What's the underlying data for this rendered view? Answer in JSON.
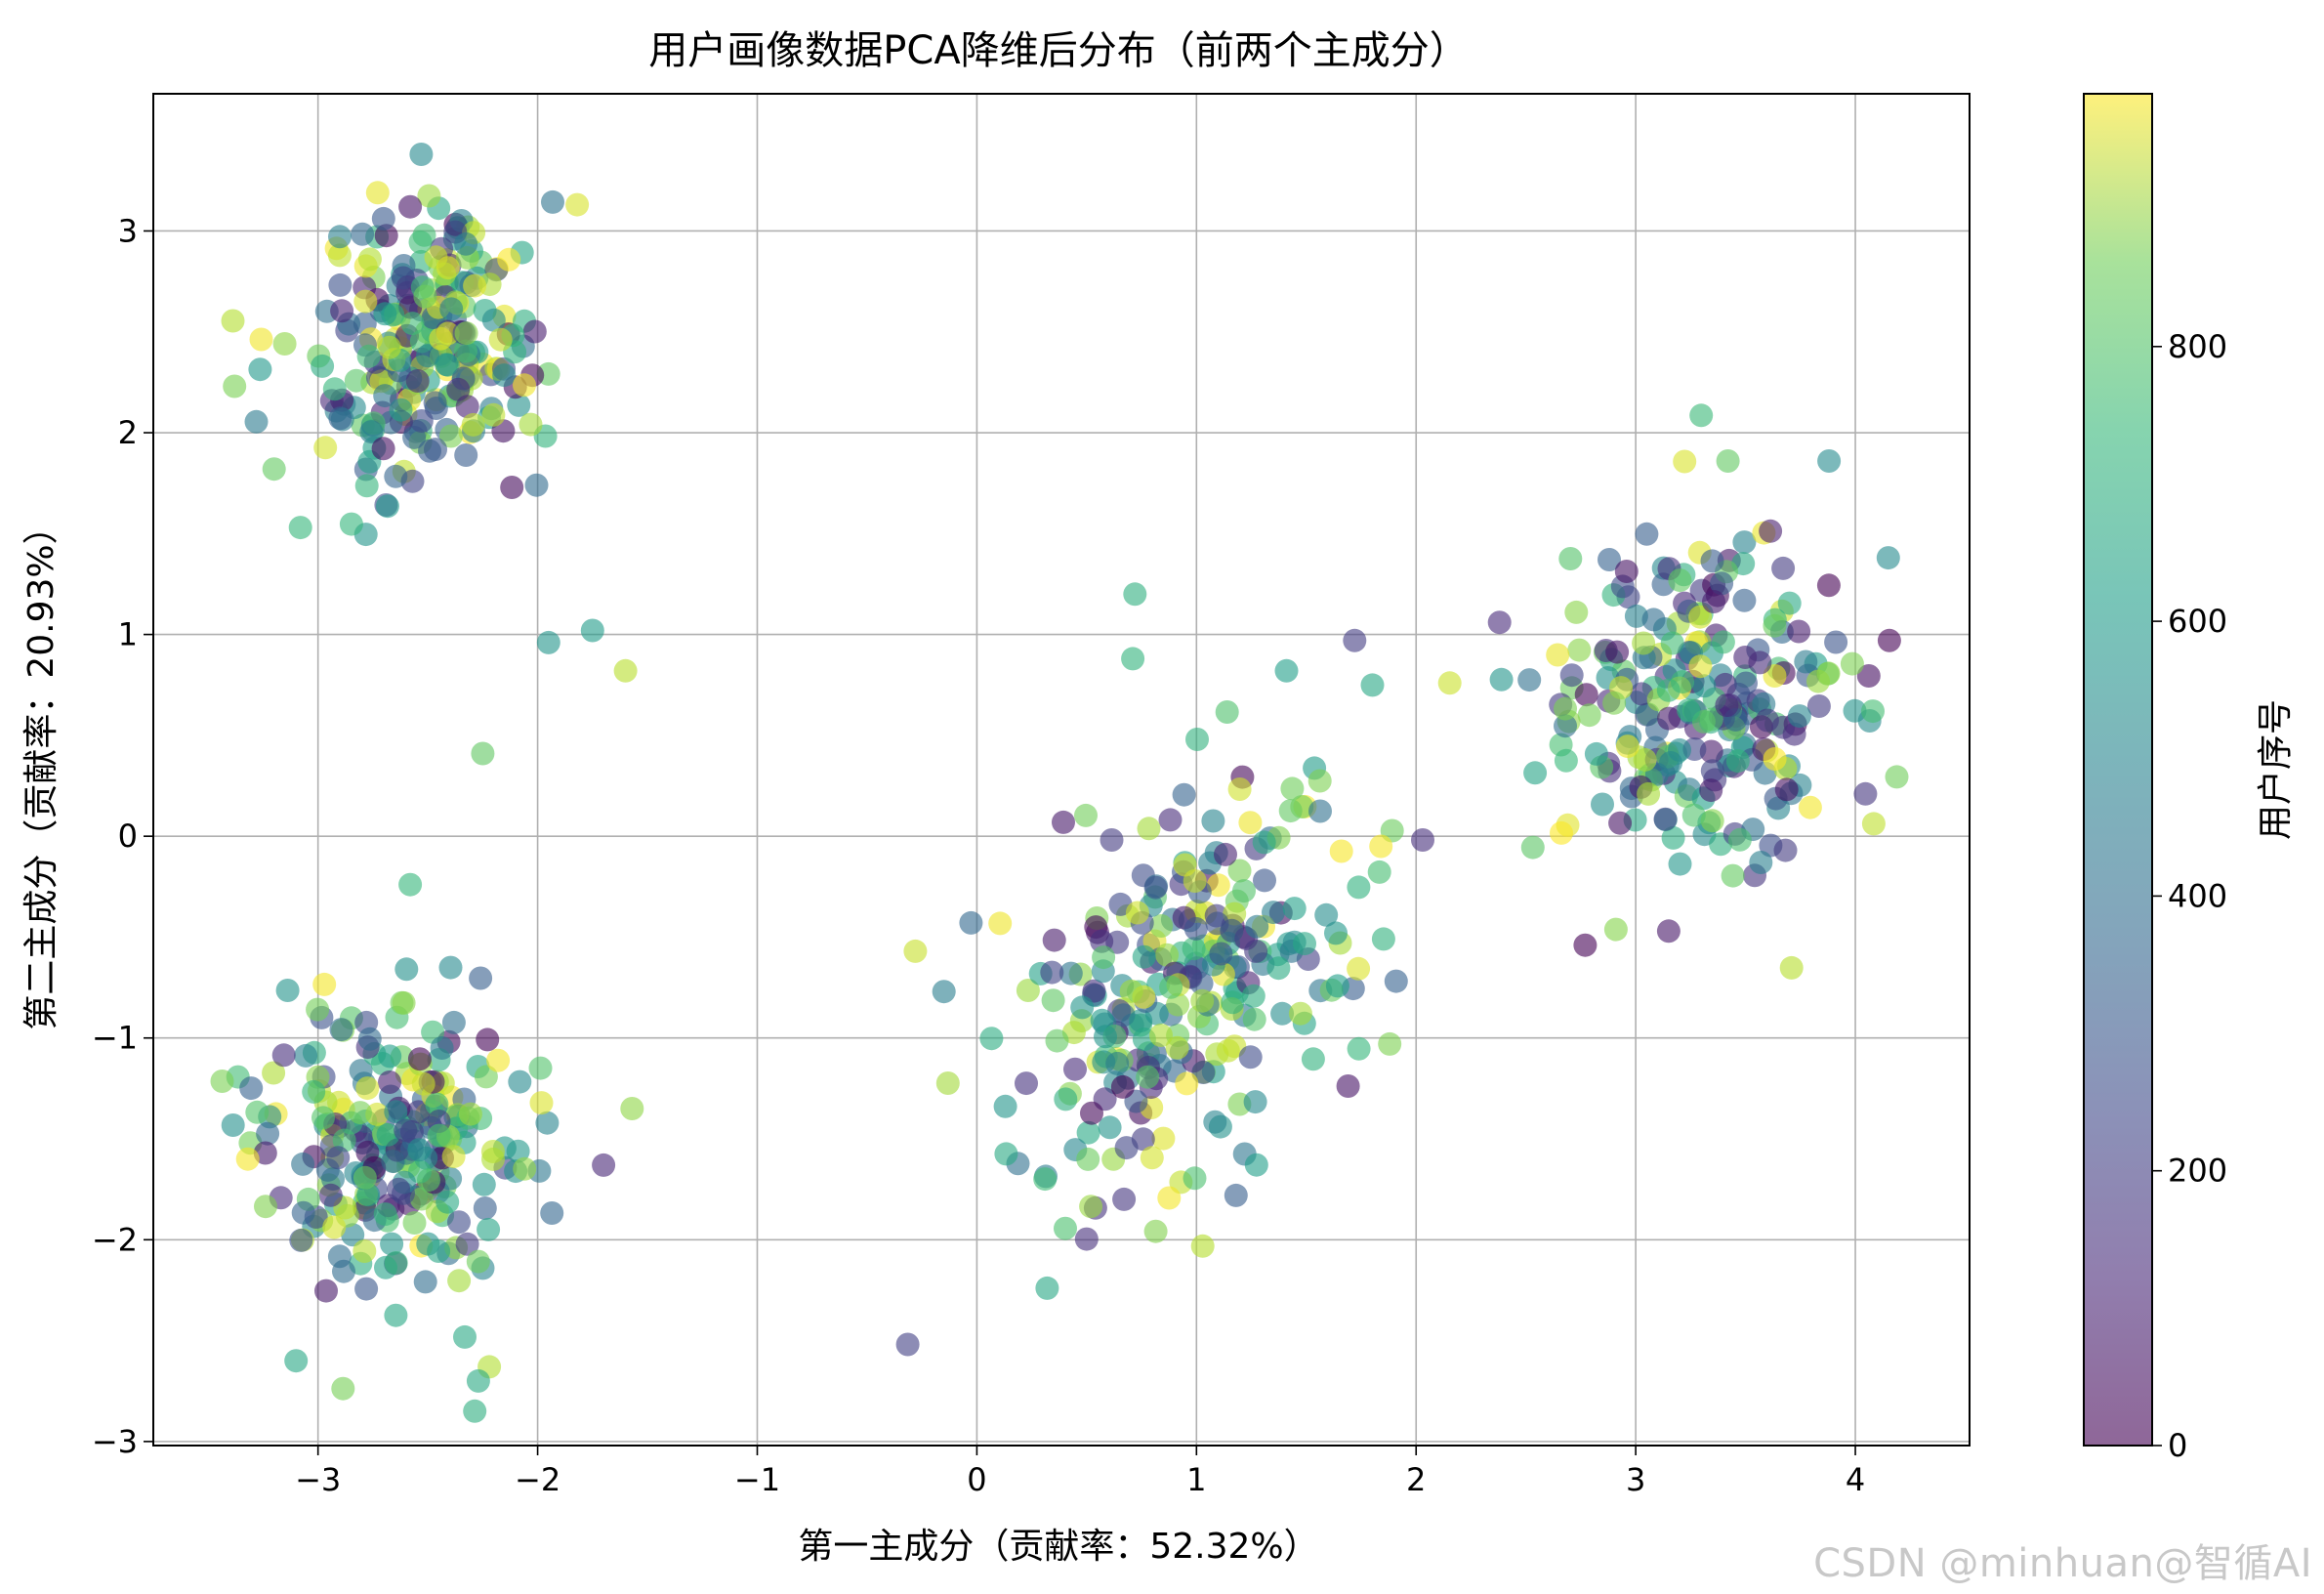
{
  "chart_data": {
    "type": "scatter",
    "title": "用户画像数据PCA降维后分布（前两个主成分）",
    "xlabel": "第一主成分（贡献率：52.32%）",
    "ylabel": "第二主成分（贡献率：20.93%）",
    "xlim": [
      -3.75,
      4.52
    ],
    "ylim": [
      -3.02,
      3.68
    ],
    "xticks": [
      -3,
      -2,
      -1,
      0,
      1,
      2,
      3,
      4
    ],
    "xtick_labels": [
      "−3",
      "−2",
      "−1",
      "0",
      "1",
      "2",
      "3",
      "4"
    ],
    "yticks": [
      -3,
      -2,
      -1,
      0,
      1,
      2,
      3
    ],
    "ytick_labels": [
      "−3",
      "−2",
      "−1",
      "0",
      "1",
      "2",
      "3"
    ],
    "grid": true,
    "colormap": "viridis",
    "point_alpha": 0.6,
    "colorbar": {
      "label": "用户序号",
      "range": [
        0,
        984
      ],
      "ticks": [
        0,
        200,
        400,
        600,
        800
      ],
      "tick_labels": [
        "0",
        "200",
        "400",
        "600",
        "800"
      ]
    },
    "clusters": [
      {
        "center": [
          -2.5,
          2.4
        ],
        "spread": [
          0.26,
          0.36
        ],
        "count": 240
      },
      {
        "center": [
          -2.65,
          -1.55
        ],
        "spread": [
          0.3,
          0.36
        ],
        "count": 240
      },
      {
        "center": [
          0.95,
          -0.75
        ],
        "spread": [
          0.42,
          0.5
        ],
        "count": 260
      },
      {
        "center": [
          3.3,
          0.7
        ],
        "spread": [
          0.34,
          0.42
        ],
        "count": 240
      }
    ],
    "sample_points": [
      {
        "x": -3.38,
        "y": 2.23
      },
      {
        "x": -2.53,
        "y": 3.38
      },
      {
        "x": -2.58,
        "y": 3.12
      },
      {
        "x": -1.82,
        "y": 3.13
      },
      {
        "x": -2.25,
        "y": 0.41
      },
      {
        "x": -1.95,
        "y": 0.96
      },
      {
        "x": -1.6,
        "y": 0.82
      },
      {
        "x": -1.75,
        "y": 1.02
      },
      {
        "x": -3.2,
        "y": 1.82
      },
      {
        "x": -3.08,
        "y": 1.53
      },
      {
        "x": -2.58,
        "y": -0.24
      },
      {
        "x": -1.57,
        "y": -1.35
      },
      {
        "x": -1.7,
        "y": -1.63
      },
      {
        "x": -3.1,
        "y": -2.6
      },
      {
        "x": -2.22,
        "y": -2.63
      },
      {
        "x": -2.27,
        "y": -2.7
      },
      {
        "x": -3.32,
        "y": -1.6
      },
      {
        "x": 0.72,
        "y": 1.2
      },
      {
        "x": 0.71,
        "y": 0.88
      },
      {
        "x": 0.32,
        "y": -2.24
      },
      {
        "x": -0.28,
        "y": -0.57
      },
      {
        "x": -0.15,
        "y": -0.77
      },
      {
        "x": 1.88,
        "y": -1.03
      },
      {
        "x": 1.84,
        "y": -0.05
      },
      {
        "x": 1.72,
        "y": 0.97
      },
      {
        "x": 1.41,
        "y": 0.82
      },
      {
        "x": 3.42,
        "y": 1.86
      },
      {
        "x": 3.88,
        "y": 1.86
      },
      {
        "x": 2.77,
        "y": -0.54
      },
      {
        "x": 3.15,
        "y": -0.47
      },
      {
        "x": 4.15,
        "y": 1.38
      },
      {
        "x": 4.08,
        "y": 0.62
      },
      {
        "x": 3.57,
        "y": -0.13
      },
      {
        "x": 2.38,
        "y": 1.06
      }
    ]
  },
  "watermark": "CSDN @minhuan@智循AI"
}
